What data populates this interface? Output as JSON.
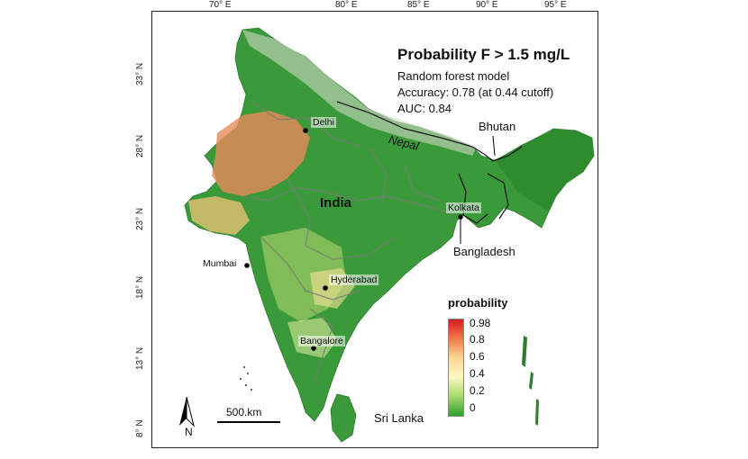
{
  "map": {
    "title": "Probability F > 1.5 mg/L",
    "model_line": "Random forest model",
    "accuracy_line": "Accuracy: 0.78 (at 0.44 cutoff)",
    "auc_line": "AUC: 0.84",
    "longitude_ticks": [
      "70° E",
      "80° E",
      "85° E",
      "90° E",
      "95° E"
    ],
    "latitude_ticks": [
      "33° N",
      "28° N",
      "23° N",
      "18° N",
      "13° N",
      "8° N"
    ],
    "cities": {
      "delhi": "Delhi",
      "kolkata": "Kolkata",
      "mumbai": "Mumbai",
      "hyderabad": "Hyderabad",
      "bangalore": "Bangalore"
    },
    "countries": {
      "india": "India",
      "nepal": "Nepal",
      "bhutan": "Bhutan",
      "bangladesh": "Bangladesh",
      "sri_lanka": "Sri Lanka"
    },
    "legend": {
      "title": "probability",
      "labels": [
        "0.98",
        "0.8",
        "0.6",
        "0.4",
        "0.2",
        "0"
      ],
      "colors": [
        "#d7191c",
        "#f07c4a",
        "#fbd692",
        "#fdf7c2",
        "#a6d96a",
        "#2ca02c"
      ]
    },
    "scale_bar": "500.km",
    "north": "N",
    "colors": {
      "low": "#3a9a3a",
      "high": "#e8704a",
      "border": "#7a7a7a"
    }
  }
}
